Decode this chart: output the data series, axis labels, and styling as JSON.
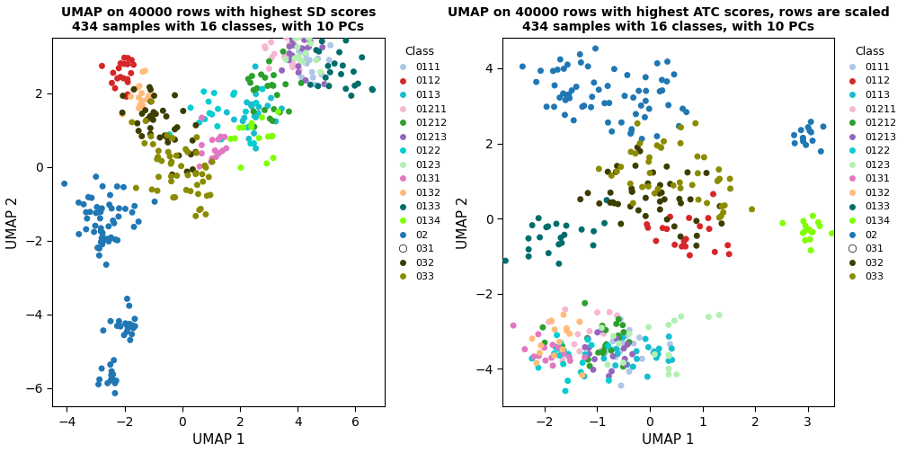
{
  "title1": "UMAP on 40000 rows with highest SD scores\n434 samples with 16 classes, with 10 PCs",
  "title2": "UMAP on 40000 rows with highest ATC scores, rows are scaled\n434 samples with 16 classes, with 10 PCs",
  "xlabel": "UMAP 1",
  "ylabel": "UMAP 2",
  "legend_title": "Class",
  "classes": [
    "0111",
    "0112",
    "0113",
    "01211",
    "01212",
    "01213",
    "0122",
    "0123",
    "0131",
    "0132",
    "0133",
    "0134",
    "02",
    "031",
    "032",
    "033"
  ],
  "colors": [
    "#aec6e8",
    "#d62728",
    "#17becf",
    "#f7b6d2",
    "#2ca02c",
    "#9467bd",
    "#00ced1",
    "#b2f0b2",
    "#e377c2",
    "#ffbb78",
    "#006d6d",
    "#7fff00",
    "#1f77b4",
    "#ffffff",
    "#3d3d00",
    "#8b8b00"
  ],
  "plot1_xlim": [
    -4.5,
    7
  ],
  "plot1_ylim": [
    -6.5,
    3.5
  ],
  "plot2_xlim": [
    -2.8,
    3.5
  ],
  "plot2_ylim": [
    -5.0,
    4.8
  ],
  "plot1_xticks": [
    -4,
    -2,
    0,
    2,
    4,
    6
  ],
  "plot1_yticks": [
    -6,
    -4,
    -2,
    0,
    2
  ],
  "plot2_xticks": [
    -2,
    -1,
    0,
    1,
    2,
    3
  ],
  "plot2_yticks": [
    -4,
    -2,
    0,
    2,
    4
  ],
  "seed1": 42,
  "seed2": 123,
  "n_points": 434,
  "markersize": 5
}
